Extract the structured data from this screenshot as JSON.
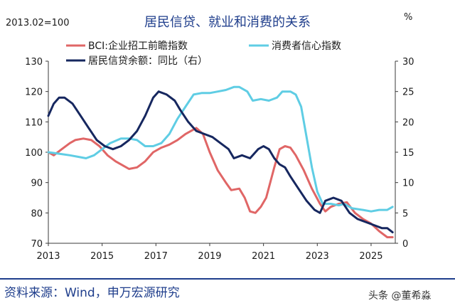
{
  "header": {
    "base_note": "2013.02=100",
    "title": "居民信贷、就业和消费的关系",
    "right_unit": "%"
  },
  "footer": {
    "source": "资料来源：Wind，申万宏源研究",
    "watermark": "头条 @董希淼"
  },
  "colors": {
    "bci": "#e06666",
    "consumer_confidence": "#5fcde4",
    "credit_yoy": "#16275f",
    "title": "#1f3e8c",
    "rule": "#1f3e8c"
  },
  "chart_data": {
    "type": "line",
    "title": "居民信贷、就业和消费的关系",
    "xlabel": "",
    "ylabel_left": "2013.02=100",
    "ylabel_right": "%",
    "xlim": [
      2013,
      2025.9
    ],
    "ylim_left": [
      70,
      130
    ],
    "ylim_right": [
      0,
      30
    ],
    "x_ticks": [
      2013,
      2015,
      2017,
      2019,
      2021,
      2023,
      2025
    ],
    "y_left_ticks": [
      70,
      80,
      90,
      100,
      110,
      120,
      130
    ],
    "y_right_ticks": [
      0,
      5,
      10,
      15,
      20,
      25,
      30
    ],
    "grid": false,
    "legend_position": "top",
    "series": [
      {
        "name": "BCI:企业招工前瞻指数",
        "axis": "left",
        "color": "#e06666",
        "points": [
          [
            2013.0,
            100
          ],
          [
            2013.2,
            99
          ],
          [
            2013.5,
            101
          ],
          [
            2013.8,
            103
          ],
          [
            2014.0,
            104
          ],
          [
            2014.3,
            104.5
          ],
          [
            2014.6,
            104
          ],
          [
            2014.9,
            102
          ],
          [
            2015.2,
            99
          ],
          [
            2015.5,
            97
          ],
          [
            2015.8,
            95.5
          ],
          [
            2016.0,
            94.5
          ],
          [
            2016.3,
            95
          ],
          [
            2016.6,
            97
          ],
          [
            2016.9,
            100
          ],
          [
            2017.2,
            101.5
          ],
          [
            2017.5,
            102.5
          ],
          [
            2017.8,
            104
          ],
          [
            2018.1,
            106
          ],
          [
            2018.5,
            108
          ],
          [
            2018.75,
            106
          ],
          [
            2019.0,
            100
          ],
          [
            2019.3,
            94
          ],
          [
            2019.6,
            90
          ],
          [
            2019.8,
            87.5
          ],
          [
            2020.1,
            88
          ],
          [
            2020.3,
            85
          ],
          [
            2020.5,
            80.5
          ],
          [
            2020.7,
            80
          ],
          [
            2020.9,
            82
          ],
          [
            2021.1,
            85
          ],
          [
            2021.4,
            95
          ],
          [
            2021.6,
            101
          ],
          [
            2021.8,
            102
          ],
          [
            2022.0,
            101.5
          ],
          [
            2022.2,
            99
          ],
          [
            2022.5,
            94
          ],
          [
            2022.8,
            88
          ],
          [
            2023.1,
            83
          ],
          [
            2023.3,
            80.5
          ],
          [
            2023.5,
            82
          ],
          [
            2023.8,
            83
          ],
          [
            2024.1,
            83.5
          ],
          [
            2024.4,
            80
          ],
          [
            2024.7,
            78
          ],
          [
            2025.0,
            76.5
          ],
          [
            2025.3,
            74
          ],
          [
            2025.6,
            72
          ],
          [
            2025.8,
            72
          ]
        ]
      },
      {
        "name": "消费者信心指数",
        "axis": "left",
        "color": "#5fcde4",
        "points": [
          [
            2013.0,
            100
          ],
          [
            2013.4,
            99.5
          ],
          [
            2013.8,
            99
          ],
          [
            2014.1,
            98.5
          ],
          [
            2014.4,
            98
          ],
          [
            2014.7,
            99
          ],
          [
            2015.0,
            101
          ],
          [
            2015.3,
            103
          ],
          [
            2015.7,
            104.5
          ],
          [
            2016.0,
            104.5
          ],
          [
            2016.3,
            104
          ],
          [
            2016.6,
            102
          ],
          [
            2016.9,
            102
          ],
          [
            2017.2,
            103
          ],
          [
            2017.5,
            106
          ],
          [
            2017.8,
            111
          ],
          [
            2018.1,
            115
          ],
          [
            2018.4,
            119
          ],
          [
            2018.7,
            119.5
          ],
          [
            2019.0,
            119.5
          ],
          [
            2019.3,
            120
          ],
          [
            2019.6,
            120.5
          ],
          [
            2019.9,
            121.5
          ],
          [
            2020.1,
            121.5
          ],
          [
            2020.4,
            120
          ],
          [
            2020.6,
            117
          ],
          [
            2020.9,
            117.5
          ],
          [
            2021.2,
            117
          ],
          [
            2021.5,
            118
          ],
          [
            2021.7,
            120
          ],
          [
            2022.0,
            120
          ],
          [
            2022.2,
            119
          ],
          [
            2022.4,
            115
          ],
          [
            2022.6,
            105
          ],
          [
            2022.8,
            95
          ],
          [
            2023.0,
            87
          ],
          [
            2023.2,
            83
          ],
          [
            2023.5,
            83
          ],
          [
            2023.8,
            82.5
          ],
          [
            2024.0,
            83
          ],
          [
            2024.3,
            81.5
          ],
          [
            2024.7,
            81
          ],
          [
            2025.0,
            80.5
          ],
          [
            2025.3,
            81
          ],
          [
            2025.6,
            81
          ],
          [
            2025.8,
            82
          ]
        ]
      },
      {
        "name": "居民信贷余额：同比（右）",
        "axis": "right",
        "color": "#16275f",
        "points": [
          [
            2013.0,
            21
          ],
          [
            2013.2,
            23
          ],
          [
            2013.4,
            24
          ],
          [
            2013.6,
            24
          ],
          [
            2013.9,
            23
          ],
          [
            2014.2,
            21
          ],
          [
            2014.5,
            19
          ],
          [
            2014.8,
            17
          ],
          [
            2015.1,
            16
          ],
          [
            2015.4,
            15.5
          ],
          [
            2015.7,
            16
          ],
          [
            2016.0,
            17
          ],
          [
            2016.3,
            18.5
          ],
          [
            2016.6,
            21
          ],
          [
            2016.9,
            24
          ],
          [
            2017.1,
            25
          ],
          [
            2017.4,
            24.5
          ],
          [
            2017.7,
            23.5
          ],
          [
            2017.9,
            22
          ],
          [
            2018.2,
            20
          ],
          [
            2018.5,
            18.5
          ],
          [
            2018.8,
            18
          ],
          [
            2019.1,
            17.5
          ],
          [
            2019.4,
            16.5
          ],
          [
            2019.7,
            15.5
          ],
          [
            2019.9,
            14
          ],
          [
            2020.2,
            14.5
          ],
          [
            2020.5,
            14
          ],
          [
            2020.8,
            15.5
          ],
          [
            2021.0,
            16
          ],
          [
            2021.2,
            15.5
          ],
          [
            2021.4,
            14
          ],
          [
            2021.6,
            13
          ],
          [
            2021.8,
            12.5
          ],
          [
            2022.0,
            11
          ],
          [
            2022.3,
            9
          ],
          [
            2022.6,
            7
          ],
          [
            2022.9,
            5.5
          ],
          [
            2023.1,
            5
          ],
          [
            2023.3,
            7
          ],
          [
            2023.6,
            7.5
          ],
          [
            2023.9,
            7
          ],
          [
            2024.2,
            5
          ],
          [
            2024.5,
            4
          ],
          [
            2024.8,
            3.5
          ],
          [
            2025.1,
            3
          ],
          [
            2025.4,
            2.5
          ],
          [
            2025.6,
            2.5
          ],
          [
            2025.8,
            1.8
          ]
        ]
      }
    ]
  }
}
